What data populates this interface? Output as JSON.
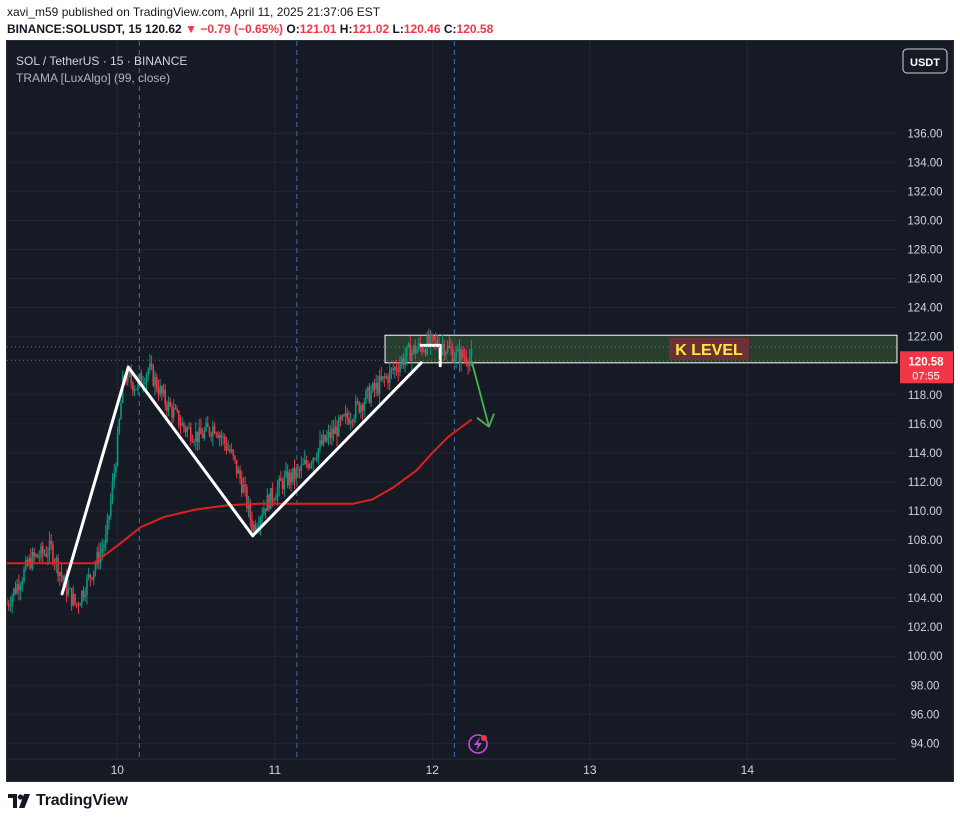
{
  "publish_info": {
    "text": "xavi_m59 published on TradingView.com, April 11, 2025 21:37:06 EST"
  },
  "ohlc_bar": {
    "symbol": "BINANCE:SOLUSDT, 15",
    "last": "120.62",
    "change": "−0.79 (−0.65%)",
    "open_label": "O:",
    "open": "121.01",
    "high_label": "H:",
    "high": "121.02",
    "low_label": "L:",
    "low": "120.46",
    "close_label": "C:",
    "close": "120.58"
  },
  "legend": {
    "pair": "SOL / TetherUS · 15 · BINANCE",
    "indicator": "TRAMA [LuxAlgo] (99, close)"
  },
  "currency_button": "USDT",
  "price_tag": {
    "price": "120.58",
    "countdown": "07:55"
  },
  "zone_label": "K LEVEL",
  "branding": "TradingView",
  "colors": {
    "background": "#161a25",
    "grid": "#232632",
    "candle_up": "#089981",
    "candle_down": "#f23645",
    "trama": "#e02020",
    "zone_fill": "#2d4a30",
    "zone_border": "#ffffff",
    "zone_label_text": "#ffeb3b",
    "zone_label_bg": "#6d2f38",
    "arrow": "#4caf50",
    "pattern": "#ffffff",
    "price_tag": "#f23645"
  },
  "chart_data": {
    "type": "candlestick",
    "y_range": [
      93.2,
      138.5
    ],
    "x_range_days": [
      9.3,
      14.95
    ],
    "x_ticks": [
      {
        "day": 10,
        "label": "10"
      },
      {
        "day": 11,
        "label": "11"
      },
      {
        "day": 12,
        "label": "12"
      },
      {
        "day": 13,
        "label": "13"
      },
      {
        "day": 14,
        "label": "14"
      }
    ],
    "y_ticks": [
      {
        "value": 136,
        "label": "136.00"
      },
      {
        "value": 134,
        "label": "134.00"
      },
      {
        "value": 132,
        "label": "132.00"
      },
      {
        "value": 130,
        "label": "130.00"
      },
      {
        "value": 128,
        "label": "128.00"
      },
      {
        "value": 126,
        "label": "126.00"
      },
      {
        "value": 124,
        "label": "124.00"
      },
      {
        "value": 122,
        "label": "122.00"
      },
      {
        "value": 118,
        "label": "118.00"
      },
      {
        "value": 116,
        "label": "116.00"
      },
      {
        "value": 114,
        "label": "114.00"
      },
      {
        "value": 112,
        "label": "112.00"
      },
      {
        "value": 110,
        "label": "110.00"
      },
      {
        "value": 108,
        "label": "108.00"
      },
      {
        "value": 106,
        "label": "106.00"
      },
      {
        "value": 104,
        "label": "104.00"
      },
      {
        "value": 102,
        "label": "102.00"
      },
      {
        "value": 100,
        "label": "100.00"
      },
      {
        "value": 98,
        "label": "98.00"
      },
      {
        "value": 96,
        "label": "96.00"
      },
      {
        "value": 94,
        "label": "94.00"
      }
    ],
    "session_breaks_days": [
      10.14,
      11.14,
      12.14
    ],
    "price_anchors": [
      [
        9.3,
        103.6
      ],
      [
        9.45,
        106.6
      ],
      [
        9.58,
        107.4
      ],
      [
        9.68,
        104.6
      ],
      [
        9.74,
        103.5
      ],
      [
        9.85,
        106.1
      ],
      [
        9.93,
        108.1
      ],
      [
        10.0,
        114.5
      ],
      [
        10.04,
        119.4
      ],
      [
        10.12,
        118.6
      ],
      [
        10.2,
        119.8
      ],
      [
        10.3,
        117.6
      ],
      [
        10.42,
        115.8
      ],
      [
        10.52,
        115.1
      ],
      [
        10.62,
        115.9
      ],
      [
        10.72,
        114.0
      ],
      [
        10.8,
        111.6
      ],
      [
        10.86,
        108.8
      ],
      [
        10.93,
        110.3
      ],
      [
        11.05,
        112.0
      ],
      [
        11.15,
        112.6
      ],
      [
        11.3,
        114.6
      ],
      [
        11.45,
        116.3
      ],
      [
        11.58,
        117.8
      ],
      [
        11.72,
        119.3
      ],
      [
        11.85,
        120.9
      ],
      [
        11.95,
        121.4
      ],
      [
        12.05,
        121.6
      ],
      [
        12.15,
        120.7
      ],
      [
        12.25,
        120.6
      ]
    ],
    "trama_line": [
      [
        9.3,
        106.4
      ],
      [
        9.85,
        106.4
      ],
      [
        10.0,
        107.6
      ],
      [
        10.15,
        108.9
      ],
      [
        10.3,
        109.6
      ],
      [
        10.5,
        110.1
      ],
      [
        10.7,
        110.4
      ],
      [
        10.9,
        110.5
      ],
      [
        11.2,
        110.5
      ],
      [
        11.5,
        110.5
      ],
      [
        11.62,
        110.8
      ],
      [
        11.75,
        111.6
      ],
      [
        11.9,
        112.8
      ],
      [
        12.0,
        114.0
      ],
      [
        12.1,
        115.1
      ],
      [
        12.25,
        116.3
      ]
    ],
    "pattern_lines": [
      {
        "name": "w-pattern",
        "points": [
          [
            9.65,
            104.3
          ],
          [
            10.07,
            119.9
          ],
          [
            10.86,
            108.3
          ],
          [
            11.93,
            120.2
          ]
        ]
      },
      {
        "name": "break-marker",
        "points": [
          [
            11.93,
            121.4
          ],
          [
            12.05,
            121.4
          ],
          [
            12.05,
            120.0
          ]
        ]
      }
    ],
    "zone": {
      "label": "K LEVEL",
      "x_start_day": 11.7,
      "x_end_day": 14.95,
      "y_top": 122.1,
      "y_bottom": 120.2
    },
    "projection_arrow": {
      "from": [
        12.25,
        120.3
      ],
      "to": [
        12.36,
        115.8
      ]
    },
    "last_price": 120.58,
    "last_price_line": 121.3
  }
}
